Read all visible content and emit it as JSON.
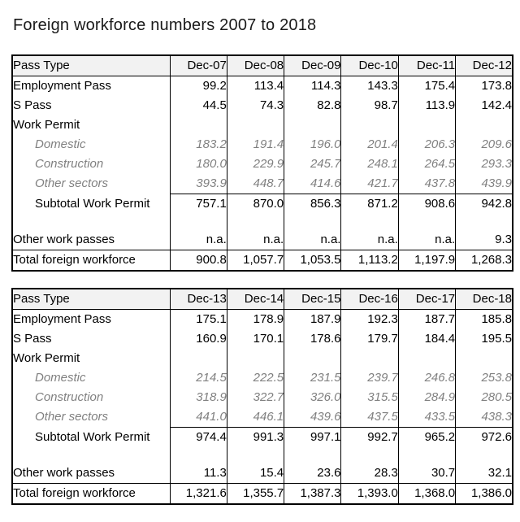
{
  "title": "Foreign workforce numbers 2007 to 2018",
  "colors": {
    "background": "#ffffff",
    "text": "#000000",
    "muted_text": "#808080",
    "table_border": "#000000",
    "header_fill": "#f2f2f2"
  },
  "chart_data": [
    {
      "type": "table",
      "columns": [
        "Pass Type",
        "Dec-07",
        "Dec-08",
        "Dec-09",
        "Dec-10",
        "Dec-11",
        "Dec-12"
      ],
      "rows": [
        {
          "label": "Employment Pass",
          "style": "normal",
          "values": [
            "99.2",
            "113.4",
            "114.3",
            "143.3",
            "175.4",
            "173.8"
          ]
        },
        {
          "label": "S Pass",
          "style": "normal",
          "values": [
            "44.5",
            "74.3",
            "82.8",
            "98.7",
            "113.9",
            "142.4"
          ]
        },
        {
          "label": "Work Permit",
          "style": "normal",
          "values": [
            "",
            "",
            "",
            "",
            "",
            ""
          ]
        },
        {
          "label": "Domestic",
          "style": "muted",
          "values": [
            "183.2",
            "191.4",
            "196.0",
            "201.4",
            "206.3",
            "209.6"
          ]
        },
        {
          "label": "Construction",
          "style": "muted",
          "values": [
            "180.0",
            "229.9",
            "245.7",
            "248.1",
            "264.5",
            "293.3"
          ]
        },
        {
          "label": "Other sectors",
          "style": "muted",
          "values": [
            "393.9",
            "448.7",
            "414.6",
            "421.7",
            "437.8",
            "439.9"
          ]
        },
        {
          "label": "Subtotal Work Permit",
          "style": "subtotal",
          "values": [
            "757.1",
            "870.0",
            "856.3",
            "871.2",
            "908.6",
            "942.8"
          ]
        },
        {
          "label": "",
          "style": "spacer",
          "values": [
            "",
            "",
            "",
            "",
            "",
            ""
          ]
        },
        {
          "label": "Other work passes",
          "style": "normal",
          "values": [
            "n.a.",
            "n.a.",
            "n.a.",
            "n.a.",
            "n.a.",
            "9.3"
          ]
        },
        {
          "label": "Total foreign workforce",
          "style": "total",
          "values": [
            "900.8",
            "1,057.7",
            "1,053.5",
            "1,113.2",
            "1,197.9",
            "1,268.3"
          ]
        }
      ]
    },
    {
      "type": "table",
      "columns": [
        "Pass Type",
        "Dec-13",
        "Dec-14",
        "Dec-15",
        "Dec-16",
        "Dec-17",
        "Dec-18"
      ],
      "rows": [
        {
          "label": "Employment Pass",
          "style": "normal",
          "values": [
            "175.1",
            "178.9",
            "187.9",
            "192.3",
            "187.7",
            "185.8"
          ]
        },
        {
          "label": "S Pass",
          "style": "normal",
          "values": [
            "160.9",
            "170.1",
            "178.6",
            "179.7",
            "184.4",
            "195.5"
          ]
        },
        {
          "label": "Work Permit",
          "style": "normal",
          "values": [
            "",
            "",
            "",
            "",
            "",
            ""
          ]
        },
        {
          "label": "Domestic",
          "style": "muted",
          "values": [
            "214.5",
            "222.5",
            "231.5",
            "239.7",
            "246.8",
            "253.8"
          ]
        },
        {
          "label": "Construction",
          "style": "muted",
          "values": [
            "318.9",
            "322.7",
            "326.0",
            "315.5",
            "284.9",
            "280.5"
          ]
        },
        {
          "label": "Other sectors",
          "style": "muted",
          "values": [
            "441.0",
            "446.1",
            "439.6",
            "437.5",
            "433.5",
            "438.3"
          ]
        },
        {
          "label": "Subtotal Work Permit",
          "style": "subtotal",
          "values": [
            "974.4",
            "991.3",
            "997.1",
            "992.7",
            "965.2",
            "972.6"
          ]
        },
        {
          "label": "",
          "style": "spacer",
          "values": [
            "",
            "",
            "",
            "",
            "",
            ""
          ]
        },
        {
          "label": "Other work passes",
          "style": "normal",
          "values": [
            "11.3",
            "15.4",
            "23.6",
            "28.3",
            "30.7",
            "32.1"
          ]
        },
        {
          "label": "Total foreign workforce",
          "style": "total",
          "values": [
            "1,321.6",
            "1,355.7",
            "1,387.3",
            "1,393.0",
            "1,368.0",
            "1,386.0"
          ]
        }
      ]
    }
  ]
}
